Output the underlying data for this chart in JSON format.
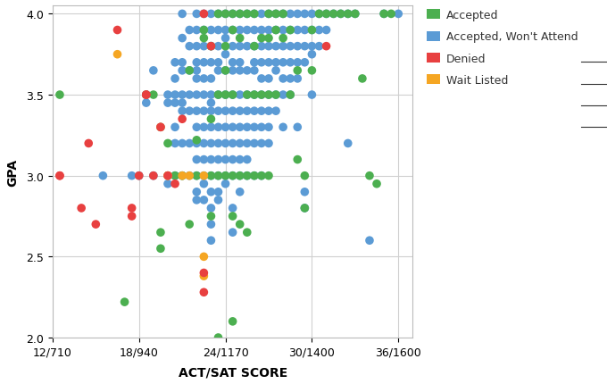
{
  "title": "",
  "xlabel": "ACT/SAT SCORE",
  "ylabel": "GPA",
  "xlim": [
    12,
    37
  ],
  "ylim": [
    2.0,
    4.05
  ],
  "xticks": [
    12,
    18,
    24,
    30,
    36
  ],
  "xticklabels": [
    "12/710",
    "18/940",
    "24/1170",
    "30/1400",
    "36/1600"
  ],
  "yticks": [
    2.0,
    2.5,
    3.0,
    3.5,
    4.0
  ],
  "bg_color": "#ffffff",
  "grid_color": "#e0e0e0",
  "categories": {
    "Accepted": {
      "color": "#4caf50"
    },
    "Accepted, Won't Attend": {
      "color": "#5b9bd5"
    },
    "Denied": {
      "color": "#e84040"
    },
    "Wait Listed": {
      "color": "#f5a623"
    }
  },
  "points": {
    "Accepted": [
      [
        12.5,
        3.5
      ],
      [
        17.0,
        2.22
      ],
      [
        18.5,
        3.5
      ],
      [
        19.0,
        3.5
      ],
      [
        19.5,
        2.55
      ],
      [
        19.5,
        2.65
      ],
      [
        20.0,
        3.2
      ],
      [
        20.5,
        3.0
      ],
      [
        21.0,
        3.0
      ],
      [
        21.5,
        2.7
      ],
      [
        21.5,
        3.65
      ],
      [
        22.0,
        3.0
      ],
      [
        22.0,
        3.22
      ],
      [
        22.5,
        3.9
      ],
      [
        22.5,
        3.85
      ],
      [
        23.0,
        3.8
      ],
      [
        23.0,
        3.35
      ],
      [
        23.0,
        3.0
      ],
      [
        23.0,
        2.75
      ],
      [
        23.5,
        4.0
      ],
      [
        23.5,
        3.5
      ],
      [
        23.5,
        3.0
      ],
      [
        23.5,
        2.0
      ],
      [
        24.0,
        4.0
      ],
      [
        24.0,
        3.8
      ],
      [
        24.0,
        3.65
      ],
      [
        24.0,
        3.5
      ],
      [
        24.0,
        3.0
      ],
      [
        24.5,
        4.0
      ],
      [
        24.5,
        3.9
      ],
      [
        24.5,
        3.5
      ],
      [
        24.5,
        3.0
      ],
      [
        24.5,
        2.75
      ],
      [
        24.5,
        2.1
      ],
      [
        25.0,
        4.0
      ],
      [
        25.0,
        3.85
      ],
      [
        25.0,
        3.0
      ],
      [
        25.0,
        2.7
      ],
      [
        25.5,
        4.0
      ],
      [
        25.5,
        3.5
      ],
      [
        25.5,
        3.0
      ],
      [
        25.5,
        2.65
      ],
      [
        26.0,
        4.0
      ],
      [
        26.0,
        3.8
      ],
      [
        26.0,
        3.5
      ],
      [
        26.0,
        3.0
      ],
      [
        26.5,
        3.85
      ],
      [
        26.5,
        3.5
      ],
      [
        26.5,
        3.0
      ],
      [
        27.0,
        4.0
      ],
      [
        27.0,
        3.85
      ],
      [
        27.0,
        3.5
      ],
      [
        27.0,
        3.0
      ],
      [
        27.5,
        4.0
      ],
      [
        27.5,
        3.9
      ],
      [
        27.5,
        3.5
      ],
      [
        28.0,
        4.0
      ],
      [
        28.0,
        3.85
      ],
      [
        28.5,
        3.9
      ],
      [
        28.5,
        3.5
      ],
      [
        29.0,
        3.65
      ],
      [
        29.0,
        3.1
      ],
      [
        29.5,
        3.0
      ],
      [
        29.5,
        2.8
      ],
      [
        30.0,
        3.9
      ],
      [
        30.0,
        3.65
      ],
      [
        30.5,
        4.0
      ],
      [
        31.0,
        4.0
      ],
      [
        31.5,
        4.0
      ],
      [
        32.0,
        4.0
      ],
      [
        32.5,
        4.0
      ],
      [
        33.0,
        4.0
      ],
      [
        33.5,
        3.6
      ],
      [
        34.0,
        3.0
      ],
      [
        34.5,
        2.95
      ],
      [
        35.0,
        4.0
      ],
      [
        35.5,
        4.0
      ]
    ],
    "Accepted, Won't Attend": [
      [
        15.5,
        3.0
      ],
      [
        17.5,
        3.0
      ],
      [
        18.0,
        3.0
      ],
      [
        18.5,
        3.5
      ],
      [
        18.5,
        3.45
      ],
      [
        19.0,
        3.65
      ],
      [
        19.0,
        3.0
      ],
      [
        19.5,
        3.3
      ],
      [
        20.0,
        3.5
      ],
      [
        20.0,
        3.45
      ],
      [
        20.0,
        3.0
      ],
      [
        20.0,
        2.95
      ],
      [
        20.5,
        3.7
      ],
      [
        20.5,
        3.6
      ],
      [
        20.5,
        3.5
      ],
      [
        20.5,
        3.45
      ],
      [
        20.5,
        3.3
      ],
      [
        20.5,
        3.2
      ],
      [
        20.5,
        3.0
      ],
      [
        21.0,
        4.0
      ],
      [
        21.0,
        3.85
      ],
      [
        21.0,
        3.7
      ],
      [
        21.0,
        3.65
      ],
      [
        21.0,
        3.5
      ],
      [
        21.0,
        3.45
      ],
      [
        21.0,
        3.4
      ],
      [
        21.0,
        3.2
      ],
      [
        21.0,
        3.0
      ],
      [
        21.5,
        3.9
      ],
      [
        21.5,
        3.8
      ],
      [
        21.5,
        3.65
      ],
      [
        21.5,
        3.5
      ],
      [
        21.5,
        3.4
      ],
      [
        21.5,
        3.2
      ],
      [
        21.5,
        3.0
      ],
      [
        22.0,
        4.0
      ],
      [
        22.0,
        3.9
      ],
      [
        22.0,
        3.8
      ],
      [
        22.0,
        3.7
      ],
      [
        22.0,
        3.65
      ],
      [
        22.0,
        3.6
      ],
      [
        22.0,
        3.5
      ],
      [
        22.0,
        3.4
      ],
      [
        22.0,
        3.3
      ],
      [
        22.0,
        3.2
      ],
      [
        22.0,
        3.1
      ],
      [
        22.0,
        3.0
      ],
      [
        22.0,
        2.9
      ],
      [
        22.0,
        2.85
      ],
      [
        22.5,
        4.0
      ],
      [
        22.5,
        3.9
      ],
      [
        22.5,
        3.8
      ],
      [
        22.5,
        3.7
      ],
      [
        22.5,
        3.6
      ],
      [
        22.5,
        3.5
      ],
      [
        22.5,
        3.4
      ],
      [
        22.5,
        3.3
      ],
      [
        22.5,
        3.2
      ],
      [
        22.5,
        3.1
      ],
      [
        22.5,
        3.0
      ],
      [
        22.5,
        2.95
      ],
      [
        22.5,
        2.85
      ],
      [
        23.0,
        4.0
      ],
      [
        23.0,
        3.9
      ],
      [
        23.0,
        3.8
      ],
      [
        23.0,
        3.7
      ],
      [
        23.0,
        3.6
      ],
      [
        23.0,
        3.5
      ],
      [
        23.0,
        3.45
      ],
      [
        23.0,
        3.4
      ],
      [
        23.0,
        3.3
      ],
      [
        23.0,
        3.2
      ],
      [
        23.0,
        3.1
      ],
      [
        23.0,
        3.0
      ],
      [
        23.0,
        2.9
      ],
      [
        23.0,
        2.8
      ],
      [
        23.0,
        2.7
      ],
      [
        23.0,
        2.6
      ],
      [
        23.5,
        4.0
      ],
      [
        23.5,
        3.9
      ],
      [
        23.5,
        3.8
      ],
      [
        23.5,
        3.7
      ],
      [
        23.5,
        3.65
      ],
      [
        23.5,
        3.5
      ],
      [
        23.5,
        3.4
      ],
      [
        23.5,
        3.3
      ],
      [
        23.5,
        3.2
      ],
      [
        23.5,
        3.1
      ],
      [
        23.5,
        3.0
      ],
      [
        23.5,
        2.9
      ],
      [
        23.5,
        2.85
      ],
      [
        24.0,
        4.0
      ],
      [
        24.0,
        3.9
      ],
      [
        24.0,
        3.85
      ],
      [
        24.0,
        3.75
      ],
      [
        24.0,
        3.65
      ],
      [
        24.0,
        3.5
      ],
      [
        24.0,
        3.4
      ],
      [
        24.0,
        3.3
      ],
      [
        24.0,
        3.2
      ],
      [
        24.0,
        3.1
      ],
      [
        24.0,
        3.0
      ],
      [
        24.0,
        2.95
      ],
      [
        24.5,
        4.0
      ],
      [
        24.5,
        3.9
      ],
      [
        24.5,
        3.8
      ],
      [
        24.5,
        3.7
      ],
      [
        24.5,
        3.65
      ],
      [
        24.5,
        3.5
      ],
      [
        24.5,
        3.4
      ],
      [
        24.5,
        3.3
      ],
      [
        24.5,
        3.2
      ],
      [
        24.5,
        3.1
      ],
      [
        24.5,
        3.0
      ],
      [
        24.5,
        2.8
      ],
      [
        24.5,
        2.65
      ],
      [
        25.0,
        4.0
      ],
      [
        25.0,
        3.9
      ],
      [
        25.0,
        3.8
      ],
      [
        25.0,
        3.7
      ],
      [
        25.0,
        3.65
      ],
      [
        25.0,
        3.5
      ],
      [
        25.0,
        3.4
      ],
      [
        25.0,
        3.3
      ],
      [
        25.0,
        3.2
      ],
      [
        25.0,
        3.1
      ],
      [
        25.0,
        3.0
      ],
      [
        25.0,
        2.9
      ],
      [
        25.5,
        4.0
      ],
      [
        25.5,
        3.9
      ],
      [
        25.5,
        3.8
      ],
      [
        25.5,
        3.65
      ],
      [
        25.5,
        3.5
      ],
      [
        25.5,
        3.4
      ],
      [
        25.5,
        3.3
      ],
      [
        25.5,
        3.2
      ],
      [
        25.5,
        3.1
      ],
      [
        25.5,
        3.0
      ],
      [
        26.0,
        4.0
      ],
      [
        26.0,
        3.9
      ],
      [
        26.0,
        3.8
      ],
      [
        26.0,
        3.7
      ],
      [
        26.0,
        3.65
      ],
      [
        26.0,
        3.5
      ],
      [
        26.0,
        3.4
      ],
      [
        26.0,
        3.3
      ],
      [
        26.0,
        3.2
      ],
      [
        26.0,
        3.0
      ],
      [
        26.5,
        4.0
      ],
      [
        26.5,
        3.9
      ],
      [
        26.5,
        3.8
      ],
      [
        26.5,
        3.7
      ],
      [
        26.5,
        3.6
      ],
      [
        26.5,
        3.5
      ],
      [
        26.5,
        3.4
      ],
      [
        26.5,
        3.3
      ],
      [
        26.5,
        3.2
      ],
      [
        26.5,
        3.0
      ],
      [
        27.0,
        4.0
      ],
      [
        27.0,
        3.9
      ],
      [
        27.0,
        3.8
      ],
      [
        27.0,
        3.7
      ],
      [
        27.0,
        3.6
      ],
      [
        27.0,
        3.5
      ],
      [
        27.0,
        3.4
      ],
      [
        27.0,
        3.3
      ],
      [
        27.0,
        3.2
      ],
      [
        27.5,
        4.0
      ],
      [
        27.5,
        3.9
      ],
      [
        27.5,
        3.8
      ],
      [
        27.5,
        3.7
      ],
      [
        27.5,
        3.65
      ],
      [
        27.5,
        3.5
      ],
      [
        27.5,
        3.4
      ],
      [
        28.0,
        4.0
      ],
      [
        28.0,
        3.9
      ],
      [
        28.0,
        3.8
      ],
      [
        28.0,
        3.7
      ],
      [
        28.0,
        3.6
      ],
      [
        28.0,
        3.5
      ],
      [
        28.0,
        3.3
      ],
      [
        28.5,
        4.0
      ],
      [
        28.5,
        3.9
      ],
      [
        28.5,
        3.8
      ],
      [
        28.5,
        3.7
      ],
      [
        28.5,
        3.6
      ],
      [
        28.5,
        3.5
      ],
      [
        29.0,
        4.0
      ],
      [
        29.0,
        3.9
      ],
      [
        29.0,
        3.8
      ],
      [
        29.0,
        3.7
      ],
      [
        29.0,
        3.6
      ],
      [
        29.0,
        3.3
      ],
      [
        29.5,
        4.0
      ],
      [
        29.5,
        3.9
      ],
      [
        29.5,
        3.8
      ],
      [
        29.5,
        3.7
      ],
      [
        29.5,
        2.9
      ],
      [
        29.5,
        2.8
      ],
      [
        30.0,
        4.0
      ],
      [
        30.0,
        3.9
      ],
      [
        30.0,
        3.8
      ],
      [
        30.0,
        3.75
      ],
      [
        30.0,
        3.5
      ],
      [
        30.5,
        4.0
      ],
      [
        30.5,
        3.9
      ],
      [
        30.5,
        3.8
      ],
      [
        31.0,
        4.0
      ],
      [
        31.0,
        3.9
      ],
      [
        31.5,
        4.0
      ],
      [
        32.0,
        4.0
      ],
      [
        32.5,
        4.0
      ],
      [
        32.5,
        3.2
      ],
      [
        33.0,
        4.0
      ],
      [
        34.0,
        2.6
      ],
      [
        35.0,
        4.0
      ],
      [
        36.0,
        4.0
      ]
    ],
    "Denied": [
      [
        12.5,
        3.0
      ],
      [
        12.5,
        3.0
      ],
      [
        14.0,
        2.8
      ],
      [
        14.5,
        3.2
      ],
      [
        15.0,
        2.7
      ],
      [
        16.5,
        3.9
      ],
      [
        17.5,
        2.8
      ],
      [
        17.5,
        2.75
      ],
      [
        18.0,
        3.0
      ],
      [
        18.5,
        3.5
      ],
      [
        18.5,
        3.5
      ],
      [
        19.0,
        3.0
      ],
      [
        19.5,
        3.3
      ],
      [
        20.0,
        3.0
      ],
      [
        20.5,
        2.95
      ],
      [
        21.0,
        3.35
      ],
      [
        22.5,
        2.4
      ],
      [
        22.5,
        2.28
      ],
      [
        22.5,
        4.0
      ],
      [
        23.0,
        3.8
      ],
      [
        31.0,
        3.8
      ]
    ],
    "Wait Listed": [
      [
        16.5,
        3.75
      ],
      [
        19.5,
        3.3
      ],
      [
        20.0,
        3.0
      ],
      [
        20.0,
        3.0
      ],
      [
        21.0,
        3.0
      ],
      [
        21.5,
        3.0
      ],
      [
        22.5,
        2.5
      ],
      [
        22.5,
        2.38
      ],
      [
        22.5,
        3.0
      ]
    ]
  },
  "legend_labels": [
    "Accepted",
    "Accepted, Won't Attend",
    "Denied",
    "Wait Listed"
  ],
  "legend_colors": [
    "#4caf50",
    "#5b9bd5",
    "#e84040",
    "#f5a623"
  ],
  "marker_size": 48,
  "tick_fontsize": 9,
  "label_fontsize": 10
}
